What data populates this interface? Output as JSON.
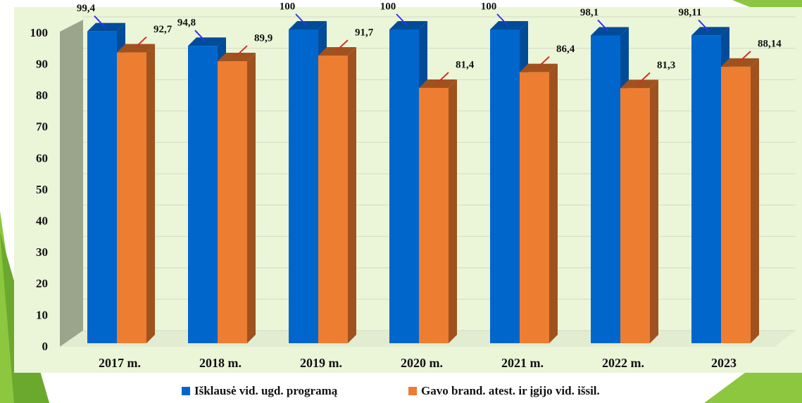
{
  "chart_data": {
    "type": "bar3d",
    "categories": [
      "2017 m.",
      "2018 m.",
      "2019 m.",
      "2020 m.",
      "2021 m.",
      "2022 m.",
      "2023"
    ],
    "series": [
      {
        "name": "Išklausė vid. ugd. programą",
        "color": "#0066cc",
        "side_color": "#004c99",
        "values": [
          99.4,
          94.8,
          100,
          100,
          100,
          98.1,
          98.11
        ],
        "value_labels": [
          "99,4",
          "94,8",
          "100",
          "100",
          "100",
          "98,1",
          "98,11"
        ]
      },
      {
        "name": "Gavo brand. atest. ir įgijo vid. išsil.",
        "color": "#ed7d31",
        "side_color": "#a0521e",
        "values": [
          92.7,
          89.9,
          91.7,
          81.4,
          86.4,
          81.3,
          88.14
        ],
        "value_labels": [
          "92,7",
          "89,9",
          "91,7",
          "81,4",
          "86,4",
          "81,3",
          "88,14"
        ]
      }
    ],
    "ylim": [
      0,
      100
    ],
    "yticks": [
      0,
      10,
      20,
      30,
      40,
      50,
      60,
      70,
      80,
      90,
      100
    ],
    "grid": true
  }
}
